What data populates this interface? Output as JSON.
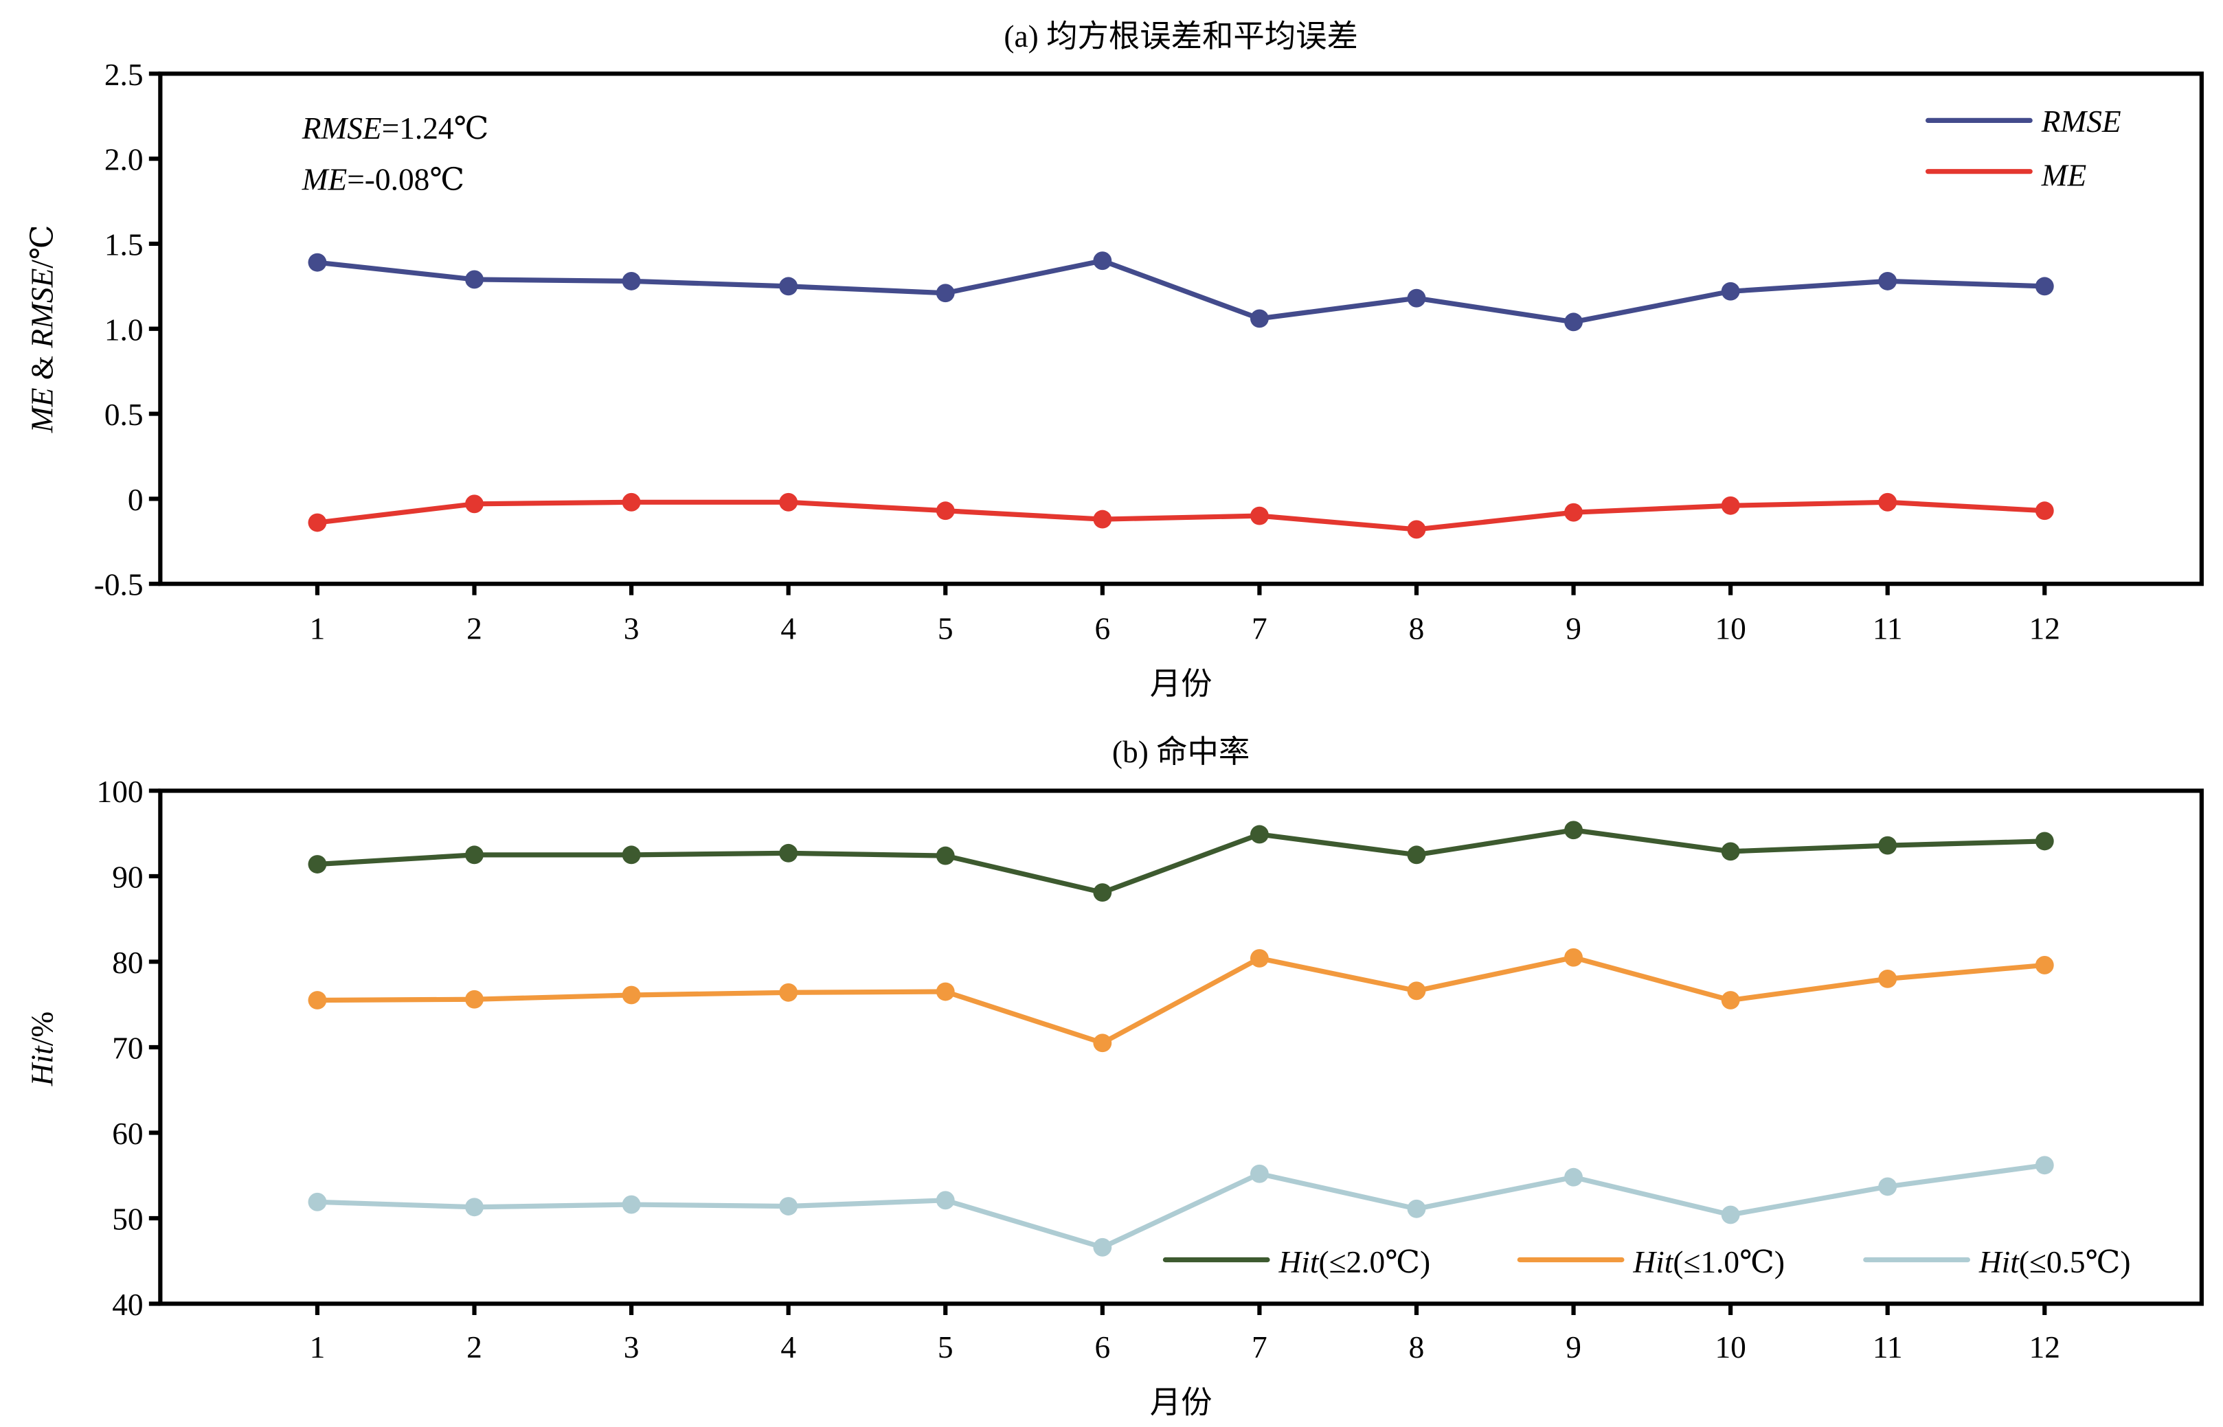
{
  "chart_data": [
    {
      "type": "line",
      "panel": "a",
      "title": "(a) 均方根误差和平均误差",
      "xlabel": "月份",
      "ylabel": "ME & RMSE/℃",
      "ylabel_parts": [
        {
          "text": "ME",
          "italic": true
        },
        {
          "text": " & ",
          "italic": false
        },
        {
          "text": "RMSE",
          "italic": true
        },
        {
          "text": "/℃",
          "italic": false
        }
      ],
      "x": [
        1,
        2,
        3,
        4,
        5,
        6,
        7,
        8,
        9,
        10,
        11,
        12
      ],
      "xticks": [
        "1",
        "2",
        "3",
        "4",
        "5",
        "6",
        "7",
        "8",
        "9",
        "10",
        "11",
        "12"
      ],
      "xlim": [
        0,
        13
      ],
      "ylim": [
        -0.5,
        2.5
      ],
      "yticks": [
        -0.5,
        0,
        0.5,
        1.0,
        1.5,
        2.0,
        2.5
      ],
      "ytick_labels": [
        "-0.5",
        "0",
        "0.5",
        "1.0",
        "1.5",
        "2.0",
        "2.5"
      ],
      "grid": false,
      "legend_position": "top-right",
      "annotations": [
        {
          "label": "RMSE",
          "value": "=1.24℃"
        },
        {
          "label": "ME",
          "value": "=-0.08℃"
        }
      ],
      "series": [
        {
          "name": "RMSE",
          "color": "#434b8c",
          "values": [
            1.39,
            1.29,
            1.28,
            1.25,
            1.21,
            1.4,
            1.06,
            1.18,
            1.04,
            1.22,
            1.28,
            1.25
          ]
        },
        {
          "name": "ME",
          "color": "#e4372f",
          "values": [
            -0.14,
            -0.03,
            -0.02,
            -0.02,
            -0.07,
            -0.12,
            -0.1,
            -0.18,
            -0.08,
            -0.04,
            -0.02,
            -0.07
          ]
        }
      ]
    },
    {
      "type": "line",
      "panel": "b",
      "title": "(b) 命中率",
      "xlabel": "月份",
      "ylabel": "Hit/%",
      "ylabel_parts": [
        {
          "text": "Hit",
          "italic": true
        },
        {
          "text": "/%",
          "italic": false
        }
      ],
      "x": [
        1,
        2,
        3,
        4,
        5,
        6,
        7,
        8,
        9,
        10,
        11,
        12
      ],
      "xticks": [
        "1",
        "2",
        "3",
        "4",
        "5",
        "6",
        "7",
        "8",
        "9",
        "10",
        "11",
        "12"
      ],
      "xlim": [
        0,
        13
      ],
      "ylim": [
        40,
        100
      ],
      "yticks": [
        40,
        50,
        60,
        70,
        80,
        90,
        100
      ],
      "ytick_labels": [
        "40",
        "50",
        "60",
        "70",
        "80",
        "90",
        "100"
      ],
      "grid": false,
      "legend_position": "bottom-right",
      "series": [
        {
          "name": "Hit(≤2.0℃)",
          "label_italic": "Hit",
          "label_rest": "(≤2.0℃)",
          "color": "#3d5a2f",
          "values": [
            91.4,
            92.5,
            92.5,
            92.7,
            92.4,
            88.1,
            94.9,
            92.5,
            95.4,
            92.9,
            93.6,
            94.1
          ]
        },
        {
          "name": "Hit(≤1.0℃)",
          "label_italic": "Hit",
          "label_rest": "(≤1.0℃)",
          "color": "#f2993d",
          "values": [
            75.5,
            75.6,
            76.1,
            76.4,
            76.5,
            70.5,
            80.4,
            76.6,
            80.5,
            75.5,
            78.0,
            79.6
          ]
        },
        {
          "name": "Hit(≤0.5℃)",
          "label_italic": "Hit",
          "label_rest": "(≤0.5℃)",
          "color": "#aeccd3",
          "values": [
            51.9,
            51.3,
            51.6,
            51.4,
            52.1,
            46.6,
            55.2,
            51.1,
            54.8,
            50.4,
            53.7,
            56.2
          ]
        }
      ]
    }
  ]
}
